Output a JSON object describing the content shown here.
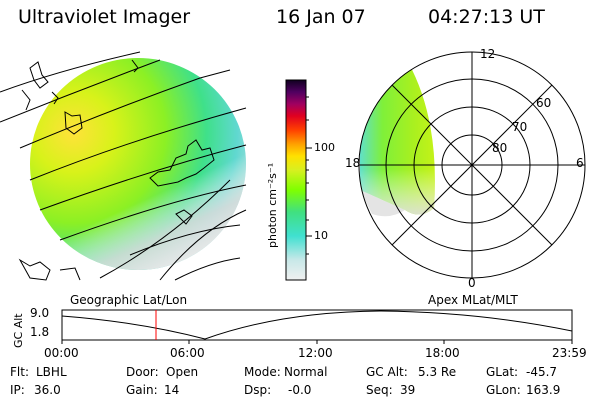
{
  "header": {
    "title": "Ultraviolet Imager",
    "date": "16 Jan 07",
    "time": "04:27:13 UT"
  },
  "colorbar": {
    "label": "photon cm⁻²s⁻¹",
    "ticks": [
      "100",
      "10"
    ],
    "scale": "log"
  },
  "polar": {
    "mlt_labels": [
      "12",
      "18",
      "6",
      "0"
    ],
    "lat_labels": [
      "60",
      "70",
      "80"
    ]
  },
  "panel_labels": {
    "left": "Geographic Lat/Lon",
    "right": "Apex  MLat/MLT"
  },
  "altitude_plot": {
    "ylabel": "GC Alt",
    "yticks": [
      "9.0",
      "1.8"
    ],
    "xticks": [
      "00:00",
      "06:00",
      "12:00",
      "18:00",
      "23:59"
    ],
    "current_time_hours": 4.45
  },
  "info": {
    "flt_label": "Flt:",
    "flt_value": "LBHL",
    "ip_label": "IP:",
    "ip_value": "36.0",
    "door_label": "Door:",
    "door_value": "Open",
    "gain_label": "Gain:",
    "gain_value": "14",
    "mode_label": "Mode:",
    "mode_value": "Normal",
    "dsp_label": "Dsp:",
    "dsp_value": "-0.0",
    "gcalt_label": "GC Alt:",
    "gcalt_value": "5.3 Re",
    "seq_label": "Seq:",
    "seq_value": "39",
    "glat_label": "GLat:",
    "glat_value": "-45.7",
    "glon_label": "GLon:",
    "glon_value": "163.9"
  },
  "colors": {
    "marker": "#ff0000",
    "low": "#e0e0e0",
    "mid": "#7fff00",
    "high": "#ffd700"
  }
}
